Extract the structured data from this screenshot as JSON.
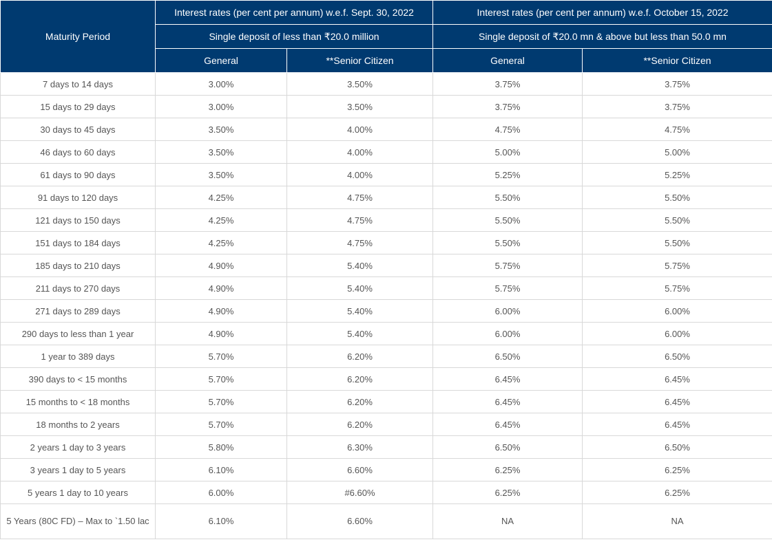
{
  "header": {
    "maturity_label": "Maturity Period",
    "group1_title": "Interest rates (per cent per annum) w.e.f. Sept. 30, 2022",
    "group1_sub": "Single deposit of less than ₹20.0 million",
    "group2_title": "Interest rates (per cent per annum) w.e.f. October 15, 2022",
    "group2_sub": "Single deposit of ₹20.0 mn & above but less than 50.0 mn",
    "col_general_1": "General",
    "col_senior_1": "**Senior Citizen",
    "col_general_2": "General",
    "col_senior_2": "**Senior Citizen"
  },
  "rows": [
    {
      "period": "7 days to 14 days",
      "g1": "3.00%",
      "s1": "3.50%",
      "g2": "3.75%",
      "s2": "3.75%"
    },
    {
      "period": "15 days to 29 days",
      "g1": "3.00%",
      "s1": "3.50%",
      "g2": "3.75%",
      "s2": "3.75%"
    },
    {
      "period": "30 days to 45 days",
      "g1": "3.50%",
      "s1": "4.00%",
      "g2": "4.75%",
      "s2": "4.75%"
    },
    {
      "period": "46 days to 60 days",
      "g1": "3.50%",
      "s1": "4.00%",
      "g2": "5.00%",
      "s2": "5.00%"
    },
    {
      "period": "61 days to 90 days",
      "g1": "3.50%",
      "s1": "4.00%",
      "g2": "5.25%",
      "s2": "5.25%"
    },
    {
      "period": "91 days to 120 days",
      "g1": "4.25%",
      "s1": "4.75%",
      "g2": "5.50%",
      "s2": "5.50%"
    },
    {
      "period": "121 days to 150 days",
      "g1": "4.25%",
      "s1": "4.75%",
      "g2": "5.50%",
      "s2": "5.50%"
    },
    {
      "period": "151 days to 184 days",
      "g1": "4.25%",
      "s1": "4.75%",
      "g2": "5.50%",
      "s2": "5.50%"
    },
    {
      "period": "185 days to 210 days",
      "g1": "4.90%",
      "s1": "5.40%",
      "g2": "5.75%",
      "s2": "5.75%"
    },
    {
      "period": "211 days to 270 days",
      "g1": "4.90%",
      "s1": "5.40%",
      "g2": "5.75%",
      "s2": "5.75%"
    },
    {
      "period": "271 days to 289 days",
      "g1": "4.90%",
      "s1": "5.40%",
      "g2": "6.00%",
      "s2": "6.00%"
    },
    {
      "period": "290 days to less than 1 year",
      "g1": "4.90%",
      "s1": "5.40%",
      "g2": "6.00%",
      "s2": "6.00%"
    },
    {
      "period": "1 year to 389 days",
      "g1": "5.70%",
      "s1": "6.20%",
      "g2": "6.50%",
      "s2": "6.50%"
    },
    {
      "period": "390 days to < 15 months",
      "g1": "5.70%",
      "s1": "6.20%",
      "g2": "6.45%",
      "s2": "6.45%"
    },
    {
      "period": "15 months to < 18 months",
      "g1": "5.70%",
      "s1": "6.20%",
      "g2": "6.45%",
      "s2": "6.45%"
    },
    {
      "period": "18 months to 2 years",
      "g1": "5.70%",
      "s1": "6.20%",
      "g2": "6.45%",
      "s2": "6.45%"
    },
    {
      "period": "2 years 1 day to 3 years",
      "g1": "5.80%",
      "s1": "6.30%",
      "g2": "6.50%",
      "s2": "6.50%"
    },
    {
      "period": "3 years 1 day to 5 years",
      "g1": "6.10%",
      "s1": "6.60%",
      "g2": "6.25%",
      "s2": "6.25%"
    },
    {
      "period": "5 years 1 day to 10 years",
      "g1": "6.00%",
      "s1": "#6.60%",
      "g2": "6.25%",
      "s2": "6.25%"
    },
    {
      "period": "5 Years (80C FD) – Max to `1.50 lac",
      "g1": "6.10%",
      "s1": "6.60%",
      "g2": "NA",
      "s2": "NA"
    }
  ],
  "colors": {
    "header_bg": "#003a70",
    "header_text": "#ffffff",
    "border": "#d8d8d8",
    "body_text": "#555555"
  }
}
